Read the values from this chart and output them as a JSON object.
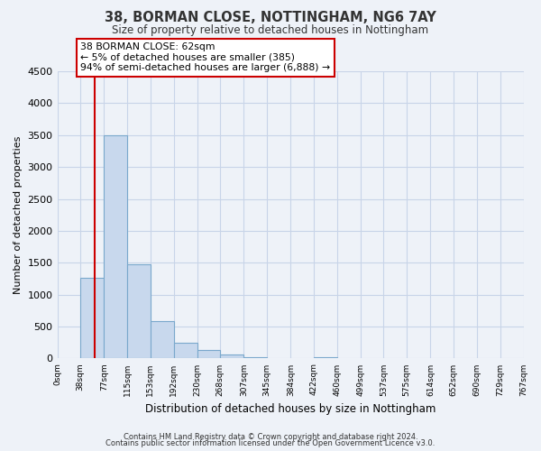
{
  "title": "38, BORMAN CLOSE, NOTTINGHAM, NG6 7AY",
  "subtitle": "Size of property relative to detached houses in Nottingham",
  "xlabel": "Distribution of detached houses by size in Nottingham",
  "ylabel": "Number of detached properties",
  "bar_edges": [
    0,
    38,
    77,
    115,
    153,
    192,
    230,
    268,
    307,
    345,
    384,
    422,
    460,
    499,
    537,
    575,
    614,
    652,
    690,
    729,
    767
  ],
  "bar_heights": [
    0,
    1270,
    3500,
    1480,
    580,
    245,
    130,
    65,
    20,
    0,
    0,
    15,
    0,
    0,
    0,
    0,
    0,
    0,
    0,
    0
  ],
  "bar_color": "#c8d8ed",
  "bar_edge_color": "#7aa8cc",
  "grid_color": "#c8d4e8",
  "property_line_x": 62,
  "property_line_color": "#cc0000",
  "annotation_title": "38 BORMAN CLOSE: 62sqm",
  "annotation_line1": "← 5% of detached houses are smaller (385)",
  "annotation_line2": "94% of semi-detached houses are larger (6,888) →",
  "annotation_box_color": "#ffffff",
  "annotation_border_color": "#cc0000",
  "ylim": [
    0,
    4500
  ],
  "tick_labels": [
    "0sqm",
    "38sqm",
    "77sqm",
    "115sqm",
    "153sqm",
    "192sqm",
    "230sqm",
    "268sqm",
    "307sqm",
    "345sqm",
    "384sqm",
    "422sqm",
    "460sqm",
    "499sqm",
    "537sqm",
    "575sqm",
    "614sqm",
    "652sqm",
    "690sqm",
    "729sqm",
    "767sqm"
  ],
  "footnote1": "Contains HM Land Registry data © Crown copyright and database right 2024.",
  "footnote2": "Contains public sector information licensed under the Open Government Licence v3.0.",
  "background_color": "#eef2f8"
}
